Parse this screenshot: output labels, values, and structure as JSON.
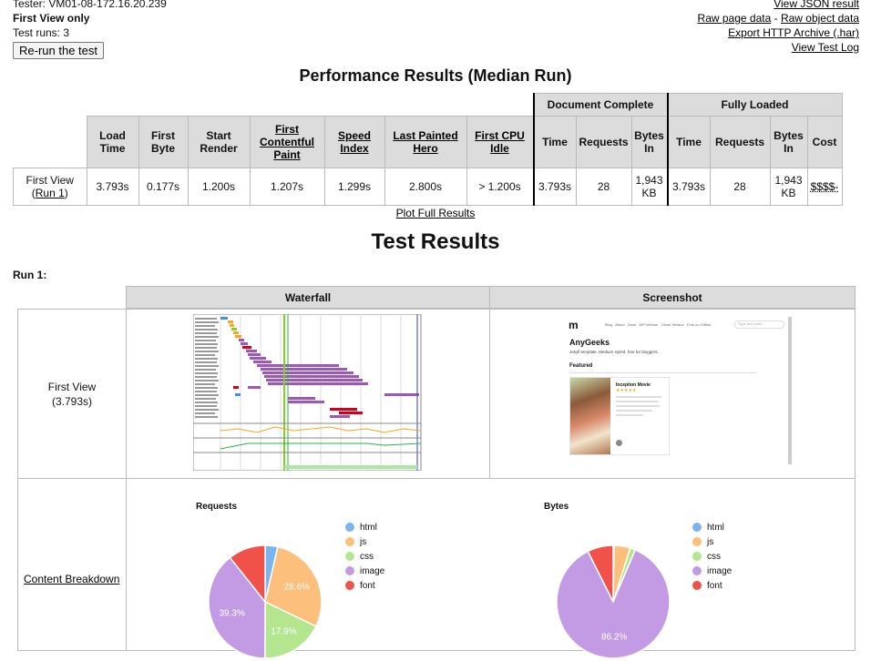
{
  "header": {
    "tester": "Tester: VM01-08-172.16.20.239",
    "view_mode": "First View only",
    "test_runs": "Test runs: 3",
    "rerun_button": "Re-run the test",
    "links": {
      "json": "View JSON result",
      "raw_page": "Raw page data",
      "separator": " - ",
      "raw_object": "Raw object data",
      "har": "Export HTTP Archive (.har)",
      "log": "View Test Log"
    }
  },
  "performance": {
    "title": "Performance Results (Median Run)",
    "group_headers": {
      "doc_complete": "Document Complete",
      "fully_loaded": "Fully Loaded"
    },
    "columns": {
      "load_time": "Load Time",
      "first_byte": "First Byte",
      "start_render": "Start Render",
      "fcp": "First Contentful Paint",
      "speed_index": "Speed Index",
      "lph": "Last Painted Hero",
      "cpu_idle": "First CPU Idle",
      "dc_time": "Time",
      "dc_requests": "Requests",
      "dc_bytes": "Bytes In",
      "fl_time": "Time",
      "fl_requests": "Requests",
      "fl_bytes": "Bytes In",
      "cost": "Cost"
    },
    "row": {
      "label": "First View",
      "run_link": "Run 1",
      "load_time": "3.793s",
      "first_byte": "0.177s",
      "start_render": "1.200s",
      "fcp": "1.207s",
      "speed_index": "1.299s",
      "lph": "2.800s",
      "cpu_idle": "> 1.200s",
      "dc_time": "3.793s",
      "dc_requests": "28",
      "dc_bytes": "1,943 KB",
      "fl_time": "3.793s",
      "fl_requests": "28",
      "fl_bytes": "1,943 KB",
      "cost": "$$$$-"
    },
    "plot_link": "Plot Full Results"
  },
  "results": {
    "title": "Test Results",
    "run_label": "Run 1:",
    "col_waterfall": "Waterfall",
    "col_screenshot": "Screenshot",
    "first_view_label": "First View",
    "first_view_time": "(3.793s)",
    "content_breakdown": "Content Breakdown",
    "screenshot": {
      "logo": "m",
      "site_title": "AnyGeeks",
      "tagline": "Jekyll template. Medium styled, free for bloggers.",
      "featured": "Featured",
      "card_title": "Inception Movie",
      "stars": "★★★★★",
      "nav": [
        "Blog",
        "About",
        "Docs",
        "WP Version",
        "Ghost Version",
        "Fork on Github"
      ],
      "search_placeholder": "Type and enter..."
    }
  },
  "chart_data": [
    {
      "type": "pie",
      "title": "Requests",
      "categories": [
        "html",
        "js",
        "css",
        "image",
        "font"
      ],
      "values": [
        3.6,
        28.6,
        17.9,
        39.3,
        10.7
      ],
      "labels": [
        "",
        "28.6%",
        "17.9%",
        "39.3%",
        ""
      ],
      "colors": [
        "#7cb4f0",
        "#fcbf7c",
        "#b4e690",
        "#c39be4",
        "#f0524a"
      ],
      "legend": "right"
    },
    {
      "type": "pie",
      "title": "Bytes",
      "categories": [
        "html",
        "js",
        "css",
        "image",
        "font"
      ],
      "values": [
        0.3,
        4.6,
        1.5,
        86.2,
        7.4
      ],
      "labels": [
        "",
        "",
        "",
        "86.2%",
        ""
      ],
      "colors": [
        "#7cb4f0",
        "#fcbf7c",
        "#b4e690",
        "#c39be4",
        "#f0524a"
      ],
      "legend": "right"
    }
  ]
}
